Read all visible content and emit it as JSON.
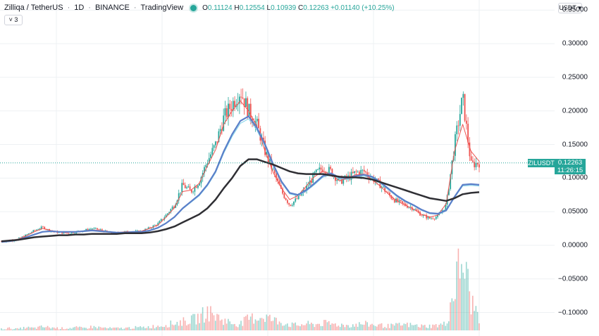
{
  "legend": {
    "symbol": "Zilliqa / TetherUS",
    "interval": "1D",
    "exchange": "BINANCE",
    "source": "TradingView",
    "open_label": "O",
    "open": "0.11124",
    "high_label": "H",
    "high": "0.12554",
    "low_label": "L",
    "low": "0.10939",
    "close_label": "C",
    "close": "0.12263",
    "change": "+0.01140 (+10.25%)"
  },
  "indicator_toggle": {
    "count": "3"
  },
  "currency_button": {
    "label": "USDT"
  },
  "price_axis": {
    "ticks": [
      "0.35000",
      "0.30000",
      "0.25000",
      "0.20000",
      "0.15000",
      "0.10000",
      "0.05000",
      "0.00000",
      "−0.05000",
      "−0.10000"
    ]
  },
  "last_price": {
    "symbol_label": "ZILUSDT",
    "price": "0.12263",
    "countdown": "11:26:15"
  },
  "colors": {
    "up": "#26a69a",
    "down": "#ef5350",
    "ma_fast": "#ef5350",
    "ma_mid": "#5b7fc9",
    "ma_slow": "#2f2f34",
    "ma_aux": "#7fd3e8",
    "grid": "#eef0f3"
  },
  "chart_data": {
    "type": "candlestick",
    "ylim": [
      -0.135,
      0.365
    ],
    "yticks": [
      0.35,
      0.3,
      0.25,
      0.2,
      0.15,
      0.1,
      0.05,
      0.0,
      -0.05,
      -0.1
    ],
    "last": 0.12263,
    "series": [
      {
        "name": "ZIL/USDT close (approx)",
        "values": [
          0.006,
          0.007,
          0.009,
          0.015,
          0.022,
          0.027,
          0.021,
          0.019,
          0.018,
          0.02,
          0.022,
          0.025,
          0.023,
          0.019,
          0.018,
          0.02,
          0.02,
          0.021,
          0.026,
          0.032,
          0.045,
          0.06,
          0.09,
          0.08,
          0.095,
          0.125,
          0.15,
          0.19,
          0.21,
          0.23,
          0.2,
          0.18,
          0.14,
          0.11,
          0.08,
          0.06,
          0.07,
          0.085,
          0.105,
          0.115,
          0.11,
          0.095,
          0.1,
          0.108,
          0.11,
          0.1,
          0.09,
          0.075,
          0.065,
          0.06,
          0.055,
          0.045,
          0.04,
          0.043,
          0.06,
          0.15,
          0.22,
          0.12,
          0.123
        ]
      },
      {
        "name": "MA fast",
        "values": [
          0.006,
          0.007,
          0.009,
          0.014,
          0.02,
          0.025,
          0.022,
          0.02,
          0.019,
          0.02,
          0.021,
          0.023,
          0.022,
          0.02,
          0.019,
          0.02,
          0.02,
          0.021,
          0.025,
          0.03,
          0.042,
          0.056,
          0.08,
          0.082,
          0.092,
          0.118,
          0.142,
          0.18,
          0.2,
          0.215,
          0.2,
          0.178,
          0.14,
          0.108,
          0.085,
          0.068,
          0.074,
          0.088,
          0.102,
          0.11,
          0.106,
          0.096,
          0.1,
          0.105,
          0.106,
          0.098,
          0.088,
          0.076,
          0.066,
          0.06,
          0.054,
          0.046,
          0.042,
          0.045,
          0.062,
          0.14,
          0.18,
          0.14,
          0.125
        ]
      },
      {
        "name": "MA mid",
        "values": [
          0.005,
          0.006,
          0.008,
          0.012,
          0.016,
          0.02,
          0.021,
          0.02,
          0.02,
          0.02,
          0.021,
          0.022,
          0.021,
          0.02,
          0.019,
          0.019,
          0.02,
          0.02,
          0.022,
          0.026,
          0.033,
          0.042,
          0.055,
          0.065,
          0.075,
          0.09,
          0.11,
          0.14,
          0.165,
          0.185,
          0.192,
          0.175,
          0.15,
          0.12,
          0.095,
          0.078,
          0.075,
          0.082,
          0.092,
          0.103,
          0.107,
          0.101,
          0.1,
          0.103,
          0.105,
          0.102,
          0.094,
          0.084,
          0.074,
          0.066,
          0.06,
          0.053,
          0.048,
          0.047,
          0.052,
          0.072,
          0.09,
          0.091,
          0.09
        ]
      },
      {
        "name": "MA slow",
        "values": [
          0.006,
          0.007,
          0.008,
          0.01,
          0.012,
          0.013,
          0.014,
          0.015,
          0.015,
          0.016,
          0.016,
          0.017,
          0.017,
          0.017,
          0.017,
          0.018,
          0.018,
          0.018,
          0.019,
          0.021,
          0.024,
          0.028,
          0.034,
          0.04,
          0.046,
          0.055,
          0.068,
          0.085,
          0.1,
          0.118,
          0.128,
          0.128,
          0.124,
          0.12,
          0.115,
          0.11,
          0.107,
          0.106,
          0.106,
          0.106,
          0.104,
          0.102,
          0.101,
          0.101,
          0.1,
          0.098,
          0.094,
          0.09,
          0.086,
          0.082,
          0.078,
          0.074,
          0.07,
          0.068,
          0.066,
          0.07,
          0.076,
          0.078,
          0.079
        ]
      }
    ],
    "volume": [
      2,
      3,
      2,
      4,
      3,
      5,
      4,
      3,
      3,
      4,
      3,
      5,
      4,
      3,
      3,
      3,
      4,
      4,
      5,
      6,
      8,
      10,
      12,
      14,
      18,
      26,
      20,
      14,
      10,
      9,
      16,
      18,
      20,
      14,
      12,
      8,
      7,
      9,
      8,
      10,
      9,
      8,
      7,
      8,
      9,
      8,
      7,
      6,
      7,
      8,
      7,
      6,
      6,
      7,
      9,
      60,
      100,
      40,
      20
    ]
  }
}
